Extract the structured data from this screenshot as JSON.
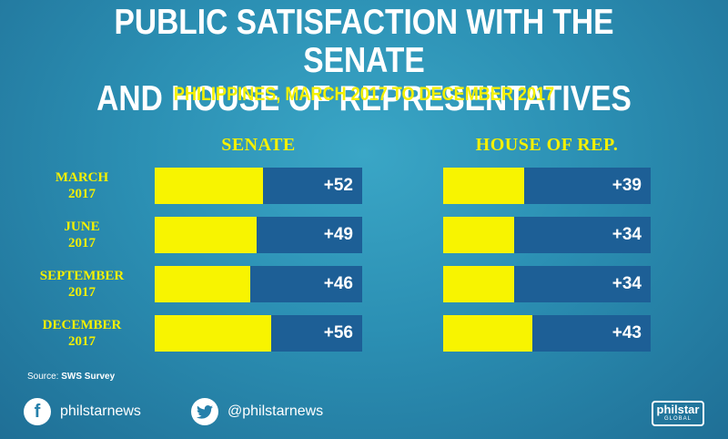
{
  "header": {
    "title_line1": "PUBLIC SATISFACTION WITH THE SENATE",
    "title_line2": "AND HOUSE OF REPRESENTATIVES",
    "subtitle": "PHILIPPINES, MARCH 2017 TO DECEMBER 2017"
  },
  "chart_data": {
    "type": "bar",
    "orientation": "horizontal",
    "title": "PUBLIC SATISFACTION WITH THE SENATE AND HOUSE OF REPRESENTATIVES",
    "subtitle": "PHILIPPINES, MARCH 2017 TO DECEMBER 2017",
    "categories": [
      {
        "line1": "MARCH",
        "line2": "2017"
      },
      {
        "line1": "JUNE",
        "line2": "2017"
      },
      {
        "line1": "SEPTEMBER",
        "line2": "2017"
      },
      {
        "line1": "DECEMBER",
        "line2": "2017"
      }
    ],
    "xlim": [
      0,
      100
    ],
    "series": [
      {
        "name": "SENATE",
        "values": [
          52,
          49,
          46,
          56
        ],
        "labels": [
          "+52",
          "+49",
          "+46",
          "+56"
        ]
      },
      {
        "name": "HOUSE OF REP.",
        "values": [
          39,
          34,
          34,
          43
        ],
        "labels": [
          "+39",
          "+34",
          "+34",
          "+43"
        ]
      }
    ],
    "colors": {
      "fill": "#f8f400",
      "track": "#1d5f96",
      "label": "#f4f000"
    }
  },
  "footer": {
    "source_prefix": "Source: ",
    "source_name": "SWS Survey",
    "facebook_handle": "philstarnews",
    "facebook_icon": "facebook-icon",
    "twitter_handle": "@philstarnews",
    "twitter_icon": "twitter-icon",
    "brand_line1": "philstar",
    "brand_line2": "GLOBAL"
  }
}
